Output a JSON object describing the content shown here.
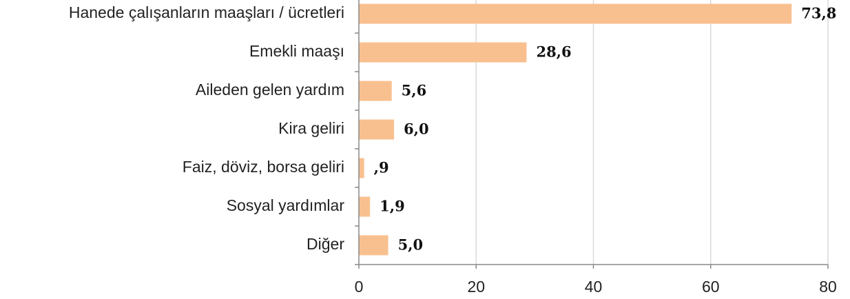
{
  "chart_data": {
    "type": "barh",
    "categories": [
      "Hanede çalışanların maaşları / ücretleri",
      "Emekli maaşı",
      "Aileden gelen yardım",
      "Kira geliri",
      "Faiz, döviz, borsa geliri",
      "Sosyal yardımlar",
      "Diğer"
    ],
    "values": [
      73.8,
      28.6,
      5.6,
      6.0,
      0.9,
      1.9,
      5.0
    ],
    "value_labels": [
      "73,8",
      "28,6",
      "5,6",
      "6,0",
      ",9",
      "1,9",
      "5,0"
    ],
    "color": "#f9c08f",
    "xlim": [
      0,
      80
    ],
    "xticks": [
      0,
      20,
      40,
      60,
      80
    ],
    "grid": true
  }
}
